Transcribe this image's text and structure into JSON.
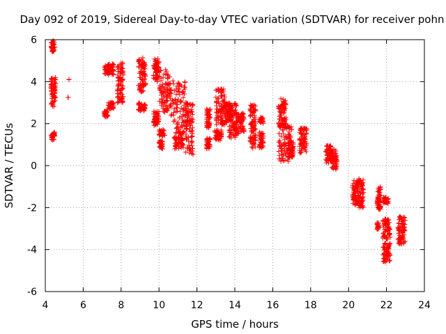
{
  "chart_data": {
    "type": "scatter",
    "title": "Day 092 of 2019, Sidereal Day-to-day VTEC variation (SDTVAR) for receiver pohn",
    "xlabel": "GPS time / hours",
    "ylabel": "SDTVAR / TECUs",
    "xlim": [
      4,
      24
    ],
    "ylim": [
      -6,
      6
    ],
    "x_ticks": [
      4,
      6,
      8,
      10,
      12,
      14,
      16,
      18,
      20,
      22,
      24
    ],
    "y_ticks": [
      -6,
      -4,
      -2,
      0,
      2,
      4,
      6
    ],
    "x_tick_labels": [
      "4",
      "6",
      "8",
      "10",
      "12",
      "14",
      "16",
      "18",
      "20",
      "22",
      "24"
    ],
    "y_tick_labels": [
      "-6",
      "-4",
      "-2",
      "0",
      "2",
      "4",
      "6"
    ],
    "grid": true,
    "marker": "+",
    "color": "#ff0000",
    "clusters": [
      {
        "x": [
          4.3,
          4.5
        ],
        "y": [
          5.4,
          5.95
        ]
      },
      {
        "x": [
          4.3,
          4.55
        ],
        "y": [
          2.8,
          4.2
        ]
      },
      {
        "x": [
          4.3,
          4.5
        ],
        "y": [
          1.2,
          1.6
        ]
      },
      {
        "x": [
          5.25,
          5.25
        ],
        "y": [
          4.1,
          4.1
        ]
      },
      {
        "x": [
          5.2,
          5.2
        ],
        "y": [
          3.25,
          3.25
        ]
      },
      {
        "x": [
          7.1,
          7.6
        ],
        "y": [
          4.3,
          4.9
        ]
      },
      {
        "x": [
          7.1,
          7.3
        ],
        "y": [
          2.3,
          2.6
        ]
      },
      {
        "x": [
          7.3,
          7.6
        ],
        "y": [
          2.7,
          3.0
        ]
      },
      {
        "x": [
          7.8,
          8.1
        ],
        "y": [
          3.0,
          4.9
        ]
      },
      {
        "x": [
          8.9,
          9.3
        ],
        "y": [
          3.5,
          5.2
        ]
      },
      {
        "x": [
          8.9,
          9.3
        ],
        "y": [
          2.6,
          3.0
        ]
      },
      {
        "x": [
          9.7,
          10.0
        ],
        "y": [
          4.0,
          5.1
        ]
      },
      {
        "x": [
          9.7,
          10.0
        ],
        "y": [
          1.9,
          2.6
        ]
      },
      {
        "x": [
          10.0,
          10.6
        ],
        "y": [
          2.5,
          4.6
        ]
      },
      {
        "x": [
          10.0,
          10.3
        ],
        "y": [
          1.4,
          1.7
        ]
      },
      {
        "x": [
          10.0,
          10.2
        ],
        "y": [
          0.8,
          1.2
        ]
      },
      {
        "x": [
          10.6,
          11.4
        ],
        "y": [
          1.6,
          4.1
        ]
      },
      {
        "x": [
          10.8,
          11.3
        ],
        "y": [
          0.8,
          1.6
        ]
      },
      {
        "x": [
          11.4,
          11.8
        ],
        "y": [
          0.5,
          3.0
        ]
      },
      {
        "x": [
          12.5,
          12.7
        ],
        "y": [
          1.8,
          2.7
        ]
      },
      {
        "x": [
          12.5,
          12.7
        ],
        "y": [
          0.8,
          1.3
        ]
      },
      {
        "x": [
          13.0,
          13.5
        ],
        "y": [
          1.9,
          3.7
        ]
      },
      {
        "x": [
          12.9,
          13.3
        ],
        "y": [
          1.2,
          1.7
        ]
      },
      {
        "x": [
          13.5,
          13.8
        ],
        "y": [
          2.0,
          3.0
        ]
      },
      {
        "x": [
          13.7,
          14.1
        ],
        "y": [
          1.3,
          3.0
        ]
      },
      {
        "x": [
          14.1,
          14.5
        ],
        "y": [
          1.5,
          2.5
        ]
      },
      {
        "x": [
          14.8,
          15.1
        ],
        "y": [
          0.8,
          2.9
        ]
      },
      {
        "x": [
          15.3,
          15.5
        ],
        "y": [
          0.8,
          1.6
        ]
      },
      {
        "x": [
          15.3,
          15.5
        ],
        "y": [
          2.0,
          2.3
        ]
      },
      {
        "x": [
          16.3,
          16.7
        ],
        "y": [
          1.8,
          3.2
        ]
      },
      {
        "x": [
          16.3,
          17.0
        ],
        "y": [
          0.2,
          2.0
        ]
      },
      {
        "x": [
          16.8,
          17.1
        ],
        "y": [
          0.4,
          1.2
        ]
      },
      {
        "x": [
          17.4,
          17.8
        ],
        "y": [
          0.6,
          1.8
        ]
      },
      {
        "x": [
          18.8,
          19.1
        ],
        "y": [
          0.1,
          1.0
        ]
      },
      {
        "x": [
          19.1,
          19.4
        ],
        "y": [
          -0.2,
          0.8
        ]
      },
      {
        "x": [
          20.2,
          20.5
        ],
        "y": [
          -1.9,
          -0.7
        ]
      },
      {
        "x": [
          20.5,
          20.8
        ],
        "y": [
          -2.0,
          -0.6
        ]
      },
      {
        "x": [
          21.5,
          21.7
        ],
        "y": [
          -2.1,
          -1.0
        ]
      },
      {
        "x": [
          21.5,
          21.6
        ],
        "y": [
          -3.1,
          -2.7
        ]
      },
      {
        "x": [
          21.8,
          22.1
        ],
        "y": [
          -1.8,
          -1.5
        ]
      },
      {
        "x": [
          21.8,
          22.2
        ],
        "y": [
          -3.5,
          -2.5
        ]
      },
      {
        "x": [
          21.8,
          22.2
        ],
        "y": [
          -4.6,
          -3.7
        ]
      },
      {
        "x": [
          22.6,
          23.0
        ],
        "y": [
          -3.8,
          -2.4
        ]
      }
    ]
  }
}
